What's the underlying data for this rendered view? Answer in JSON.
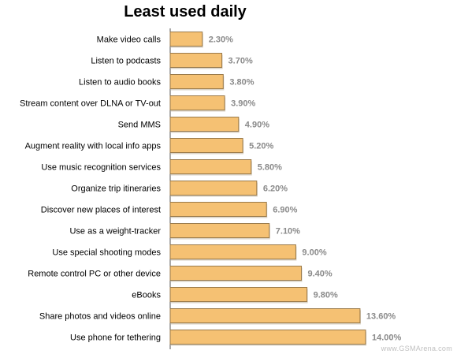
{
  "chart_data": {
    "type": "bar",
    "orientation": "horizontal",
    "title": "Least used daily",
    "categories": [
      "Make video calls",
      "Listen to podcasts",
      "Listen to audio books",
      "Stream content over DLNA or TV-out",
      "Send MMS",
      "Augment reality with local info apps",
      "Use music recognition services",
      "Organize trip itineraries",
      "Discover new places of interest",
      "Use as a weight-tracker",
      "Use special shooting modes",
      "Remote control PC or other device",
      "eBooks",
      "Share photos and videos online",
      "Use phone for tethering"
    ],
    "values": [
      2.3,
      3.7,
      3.8,
      3.9,
      4.9,
      5.2,
      5.8,
      6.2,
      6.9,
      7.1,
      9.0,
      9.4,
      9.8,
      13.6,
      14.0
    ],
    "value_labels": [
      "2.30%",
      "3.70%",
      "3.80%",
      "3.90%",
      "4.90%",
      "5.20%",
      "5.80%",
      "6.20%",
      "6.90%",
      "7.10%",
      "9.00%",
      "9.40%",
      "9.80%",
      "13.60%",
      "14.00%"
    ],
    "xlim": [
      0,
      14
    ],
    "bar_color": "#f5c173",
    "bar_edge_color": "#9a7a4a",
    "value_label_color": "#8a8a8a",
    "grid": false
  },
  "watermark": "www.GSMArena.com"
}
